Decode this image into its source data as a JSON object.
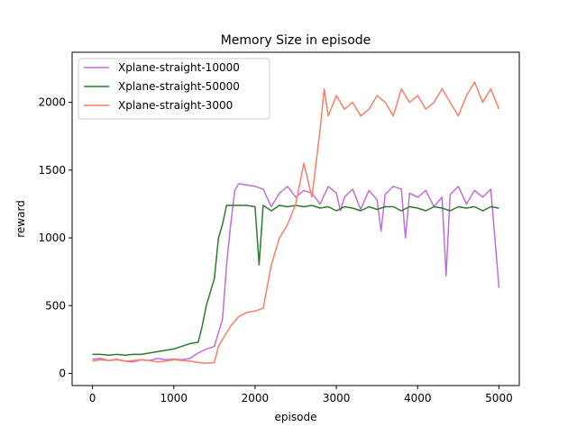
{
  "chart_data": {
    "type": "line",
    "title": "Memory Size in episode",
    "xlabel": "episode",
    "ylabel": "reward",
    "xlim": [
      -250,
      5250
    ],
    "ylim": [
      -90,
      2370
    ],
    "x_ticks": [
      0,
      1000,
      2000,
      3000,
      4000,
      5000
    ],
    "y_ticks": [
      0,
      500,
      1000,
      1500,
      2000
    ],
    "grid": false,
    "legend_position": "top-left",
    "series": [
      {
        "name": "Xplane-straight-10000",
        "color": "#bf6fd8",
        "x": [
          0,
          100,
          200,
          300,
          400,
          500,
          600,
          700,
          800,
          900,
          1000,
          1100,
          1200,
          1300,
          1400,
          1500,
          1550,
          1600,
          1650,
          1700,
          1750,
          1800,
          1900,
          2000,
          2100,
          2200,
          2300,
          2400,
          2500,
          2600,
          2700,
          2800,
          2900,
          3000,
          3050,
          3100,
          3200,
          3300,
          3400,
          3500,
          3550,
          3600,
          3700,
          3800,
          3850,
          3900,
          4000,
          4100,
          4200,
          4300,
          4350,
          4400,
          4500,
          4600,
          4700,
          4800,
          4900,
          5000
        ],
        "values": [
          105,
          110,
          95,
          105,
          90,
          85,
          100,
          95,
          110,
          100,
          105,
          100,
          110,
          150,
          180,
          200,
          300,
          400,
          800,
          1100,
          1350,
          1400,
          1390,
          1380,
          1360,
          1230,
          1330,
          1380,
          1300,
          1350,
          1330,
          1250,
          1380,
          1330,
          1200,
          1300,
          1360,
          1210,
          1350,
          1280,
          1050,
          1320,
          1380,
          1360,
          1000,
          1330,
          1300,
          1350,
          1230,
          1300,
          720,
          1320,
          1380,
          1250,
          1350,
          1300,
          1360,
          630
        ]
      },
      {
        "name": "Xplane-straight-50000",
        "color": "#2d7a2d",
        "x": [
          0,
          100,
          200,
          300,
          400,
          500,
          600,
          700,
          800,
          900,
          1000,
          1100,
          1200,
          1300,
          1350,
          1400,
          1450,
          1500,
          1550,
          1600,
          1650,
          1700,
          1800,
          1900,
          2000,
          2050,
          2100,
          2200,
          2300,
          2400,
          2500,
          2600,
          2700,
          2800,
          2900,
          3000,
          3100,
          3200,
          3300,
          3400,
          3500,
          3600,
          3700,
          3800,
          3900,
          4000,
          4100,
          4200,
          4300,
          4400,
          4500,
          4600,
          4700,
          4800,
          4900,
          5000
        ],
        "values": [
          140,
          140,
          135,
          140,
          135,
          140,
          140,
          150,
          160,
          170,
          180,
          200,
          220,
          230,
          350,
          500,
          600,
          700,
          1000,
          1100,
          1240,
          1240,
          1240,
          1240,
          1230,
          800,
          1240,
          1200,
          1240,
          1230,
          1240,
          1230,
          1240,
          1220,
          1230,
          1200,
          1230,
          1220,
          1200,
          1230,
          1210,
          1230,
          1230,
          1200,
          1230,
          1220,
          1200,
          1230,
          1220,
          1200,
          1230,
          1220,
          1230,
          1200,
          1230,
          1220
        ]
      },
      {
        "name": "Xplane-straight-3000",
        "color": "#f97f65",
        "x": [
          0,
          100,
          200,
          300,
          400,
          500,
          600,
          700,
          800,
          900,
          1000,
          1100,
          1200,
          1300,
          1400,
          1500,
          1550,
          1600,
          1700,
          1800,
          1900,
          2000,
          2100,
          2200,
          2300,
          2400,
          2500,
          2600,
          2700,
          2800,
          2850,
          2900,
          3000,
          3100,
          3200,
          3300,
          3400,
          3500,
          3600,
          3700,
          3800,
          3900,
          4000,
          4100,
          4200,
          4300,
          4400,
          4500,
          4600,
          4700,
          4800,
          4900,
          5000
        ],
        "values": [
          90,
          100,
          95,
          100,
          90,
          95,
          100,
          95,
          85,
          90,
          100,
          95,
          90,
          80,
          75,
          80,
          200,
          250,
          350,
          420,
          450,
          460,
          480,
          800,
          1000,
          1100,
          1250,
          1550,
          1300,
          1800,
          2100,
          1900,
          2050,
          1950,
          2000,
          1900,
          1950,
          2050,
          2000,
          1900,
          2100,
          2000,
          2050,
          1950,
          2000,
          2100,
          2000,
          1900,
          2050,
          2150,
          2000,
          2100,
          1950
        ]
      }
    ]
  }
}
